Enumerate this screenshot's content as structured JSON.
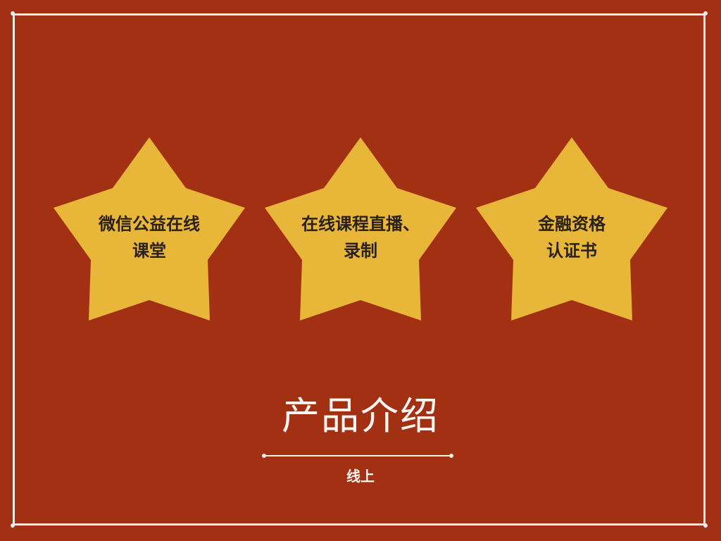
{
  "colors": {
    "background": "#a23012",
    "star_fill": "#e8b73a",
    "frame": "#f3ece6",
    "star_text": "#2a2118",
    "title_text": "#fbf6f2"
  },
  "stars": [
    {
      "line1": "微信公益在线",
      "line2": "课堂"
    },
    {
      "line1": "在线课程直播、",
      "line2": "录制"
    },
    {
      "line1": "金融资格",
      "line2": "认证书"
    }
  ],
  "title": "产品介绍",
  "subtitle": "线上"
}
